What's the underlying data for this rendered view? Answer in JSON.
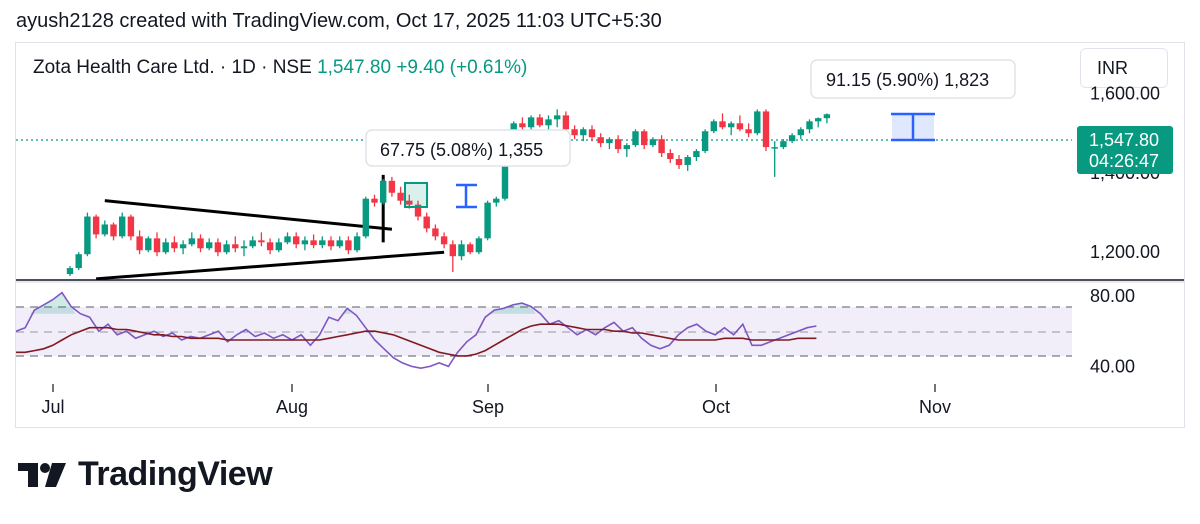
{
  "header": {
    "text": "ayush2128 created with TradingView.com, Oct 17, 2025 11:03 UTC+5:30"
  },
  "legend": {
    "symbol": "Zota Health Care Ltd. · 1D · NSE",
    "price": "1,547.80",
    "change": "+9.40 (+0.61%)"
  },
  "currency": "INR",
  "price_badge": {
    "price": "1,547.80",
    "countdown": "04:26:47"
  },
  "measures": [
    {
      "label": "67.75 (5.08%) 1,355"
    },
    {
      "label": "91.15 (5.90%) 1,823"
    }
  ],
  "brand": {
    "name": "TradingView"
  },
  "colors": {
    "up": "#089981",
    "down": "#f23645",
    "rsi": "#7e57c2",
    "rsi_ma": "#801922",
    "measure": "#2962ff"
  },
  "chart_data": {
    "type": "candlestick",
    "interval": "1D",
    "x_ticks": [
      "Jul",
      "Aug",
      "Sep",
      "Oct",
      "Nov"
    ],
    "price_ticks": [
      "1,600.00",
      "1,400.00",
      "1,200.00"
    ],
    "price_range": [
      1130,
      1730
    ],
    "last_price": 1547.8,
    "candles": [
      [
        1145,
        1165,
        1140,
        1160
      ],
      [
        1160,
        1200,
        1155,
        1195
      ],
      [
        1195,
        1300,
        1190,
        1290
      ],
      [
        1290,
        1295,
        1235,
        1245
      ],
      [
        1245,
        1280,
        1240,
        1270
      ],
      [
        1270,
        1275,
        1230,
        1240
      ],
      [
        1240,
        1300,
        1235,
        1290
      ],
      [
        1290,
        1295,
        1230,
        1240
      ],
      [
        1240,
        1255,
        1195,
        1205
      ],
      [
        1205,
        1240,
        1200,
        1235
      ],
      [
        1235,
        1250,
        1190,
        1200
      ],
      [
        1200,
        1235,
        1195,
        1225
      ],
      [
        1225,
        1240,
        1200,
        1210
      ],
      [
        1210,
        1230,
        1195,
        1220
      ],
      [
        1220,
        1250,
        1215,
        1235
      ],
      [
        1235,
        1245,
        1200,
        1210
      ],
      [
        1210,
        1235,
        1205,
        1225
      ],
      [
        1225,
        1235,
        1190,
        1200
      ],
      [
        1200,
        1230,
        1195,
        1220
      ],
      [
        1220,
        1240,
        1200,
        1210
      ],
      [
        1210,
        1230,
        1190,
        1215
      ],
      [
        1215,
        1240,
        1210,
        1230
      ],
      [
        1230,
        1250,
        1215,
        1225
      ],
      [
        1225,
        1235,
        1195,
        1205
      ],
      [
        1205,
        1235,
        1200,
        1225
      ],
      [
        1225,
        1250,
        1220,
        1240
      ],
      [
        1240,
        1250,
        1210,
        1220
      ],
      [
        1220,
        1240,
        1205,
        1230
      ],
      [
        1230,
        1245,
        1210,
        1218
      ],
      [
        1218,
        1240,
        1210,
        1230
      ],
      [
        1230,
        1240,
        1205,
        1215
      ],
      [
        1215,
        1240,
        1210,
        1230
      ],
      [
        1230,
        1240,
        1195,
        1205
      ],
      [
        1205,
        1250,
        1200,
        1240
      ],
      [
        1240,
        1340,
        1235,
        1335
      ],
      [
        1335,
        1345,
        1315,
        1325
      ],
      [
        1325,
        1385,
        1320,
        1380
      ],
      [
        1380,
        1390,
        1340,
        1350
      ],
      [
        1350,
        1365,
        1320,
        1330
      ],
      [
        1330,
        1345,
        1310,
        1320
      ],
      [
        1320,
        1330,
        1280,
        1290
      ],
      [
        1290,
        1300,
        1250,
        1260
      ],
      [
        1260,
        1270,
        1230,
        1240
      ],
      [
        1240,
        1250,
        1210,
        1220
      ],
      [
        1220,
        1230,
        1150,
        1190
      ],
      [
        1190,
        1230,
        1180,
        1220
      ],
      [
        1220,
        1225,
        1195,
        1200
      ],
      [
        1200,
        1240,
        1195,
        1235
      ],
      [
        1235,
        1330,
        1230,
        1325
      ],
      [
        1325,
        1340,
        1315,
        1335
      ],
      [
        1335,
        1470,
        1330,
        1460
      ],
      [
        1460,
        1530,
        1455,
        1525
      ],
      [
        1525,
        1540,
        1500,
        1515
      ],
      [
        1515,
        1545,
        1505,
        1540
      ],
      [
        1540,
        1548,
        1515,
        1520
      ],
      [
        1520,
        1545,
        1500,
        1535
      ],
      [
        1535,
        1560,
        1515,
        1545
      ],
      [
        1545,
        1555,
        1500,
        1510
      ],
      [
        1510,
        1520,
        1485,
        1495
      ],
      [
        1495,
        1515,
        1480,
        1510
      ],
      [
        1510,
        1520,
        1480,
        1490
      ],
      [
        1490,
        1500,
        1465,
        1475
      ],
      [
        1475,
        1490,
        1460,
        1485
      ],
      [
        1485,
        1495,
        1450,
        1460
      ],
      [
        1460,
        1475,
        1440,
        1470
      ],
      [
        1470,
        1510,
        1465,
        1505
      ],
      [
        1505,
        1510,
        1460,
        1470
      ],
      [
        1470,
        1490,
        1465,
        1485
      ],
      [
        1485,
        1495,
        1440,
        1450
      ],
      [
        1450,
        1460,
        1425,
        1435
      ],
      [
        1435,
        1445,
        1410,
        1420
      ],
      [
        1420,
        1445,
        1405,
        1440
      ],
      [
        1440,
        1460,
        1430,
        1455
      ],
      [
        1455,
        1510,
        1450,
        1505
      ],
      [
        1505,
        1535,
        1500,
        1530
      ],
      [
        1530,
        1550,
        1510,
        1515
      ],
      [
        1515,
        1530,
        1495,
        1525
      ],
      [
        1525,
        1545,
        1505,
        1510
      ],
      [
        1510,
        1525,
        1490,
        1500
      ],
      [
        1500,
        1560,
        1495,
        1555
      ],
      [
        1555,
        1560,
        1455,
        1465
      ],
      [
        1465,
        1480,
        1390,
        1465
      ],
      [
        1465,
        1485,
        1460,
        1480
      ],
      [
        1480,
        1500,
        1475,
        1495
      ],
      [
        1495,
        1515,
        1485,
        1510
      ],
      [
        1510,
        1535,
        1500,
        1530
      ],
      [
        1530,
        1540,
        1515,
        1538
      ],
      [
        1538,
        1550,
        1525,
        1547.8
      ]
    ],
    "rsi": {
      "ticks": [
        "80.00",
        "40.00"
      ],
      "range": [
        30,
        88
      ],
      "levels": [
        70,
        50,
        30
      ],
      "values": [
        60,
        62,
        72,
        75,
        78,
        82,
        74,
        70,
        68,
        60,
        64,
        58,
        60,
        56,
        58,
        60,
        57,
        59,
        55,
        57,
        56,
        58,
        60,
        54,
        58,
        61,
        57,
        59,
        56,
        58,
        55,
        58,
        52,
        58,
        68,
        66,
        73,
        69,
        62,
        55,
        50,
        45,
        42,
        40,
        39,
        40,
        42,
        40,
        48,
        54,
        58,
        68,
        72,
        73,
        75,
        76,
        74,
        70,
        64,
        66,
        62,
        58,
        61,
        58,
        62,
        65,
        60,
        62,
        56,
        52,
        50,
        52,
        58,
        62,
        64,
        60,
        58,
        62,
        58,
        64,
        52,
        52,
        54,
        56,
        58,
        60,
        62,
        63
      ],
      "ma": [
        48,
        48,
        49,
        50,
        52,
        55,
        58,
        60,
        62,
        62,
        62,
        61,
        61,
        60,
        59,
        58,
        58,
        57,
        57,
        56,
        56,
        56,
        56,
        55,
        55,
        55,
        55,
        55,
        55,
        55,
        55,
        55,
        55,
        55,
        56,
        57,
        58,
        59,
        60,
        60,
        59,
        58,
        56,
        54,
        52,
        50,
        48,
        47,
        46,
        46,
        47,
        49,
        52,
        55,
        58,
        61,
        63,
        64,
        64,
        64,
        63,
        62,
        61,
        61,
        61,
        60,
        60,
        59,
        59,
        58,
        57,
        56,
        55,
        55,
        55,
        55,
        55,
        56,
        56,
        56,
        55,
        55,
        55,
        55,
        55,
        56,
        56,
        56
      ]
    },
    "trendlines": [
      {
        "from": [
          4,
          1330
        ],
        "to": [
          37,
          1258
        ],
        "label": ""
      },
      {
        "from": [
          3,
          1133
        ],
        "to": [
          43,
          1200
        ],
        "label": ""
      }
    ],
    "annotations": [
      {
        "text": "67.75 (5.08%) 1,355"
      },
      {
        "text": "91.15 (5.90%) 1,823"
      }
    ]
  }
}
